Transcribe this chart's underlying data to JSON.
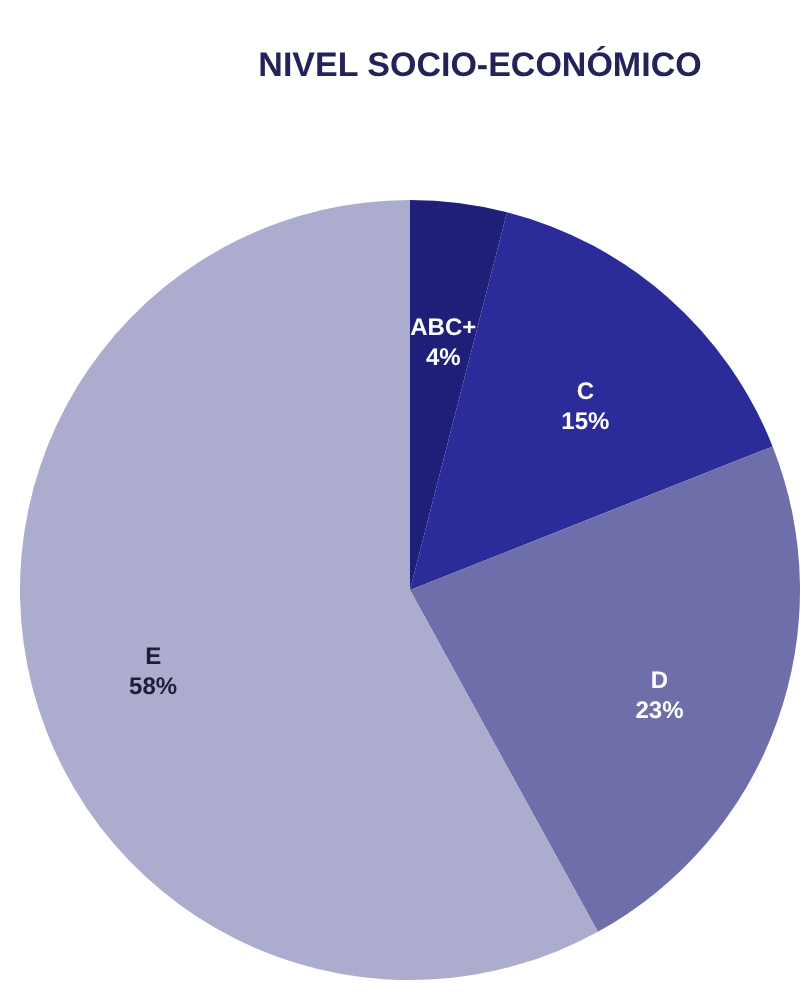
{
  "chart_data": {
    "type": "pie",
    "title": "NIVEL SOCIO-ECONÓMICO",
    "categories": [
      "ABC+",
      "C",
      "D",
      "E"
    ],
    "values": [
      4,
      15,
      23,
      58
    ],
    "value_labels": [
      "4%",
      "15%",
      "23%",
      "58%"
    ],
    "colors": [
      "#1f1f7a",
      "#2b2b99",
      "#6e6eaa",
      "#acacce"
    ],
    "legend": false
  }
}
